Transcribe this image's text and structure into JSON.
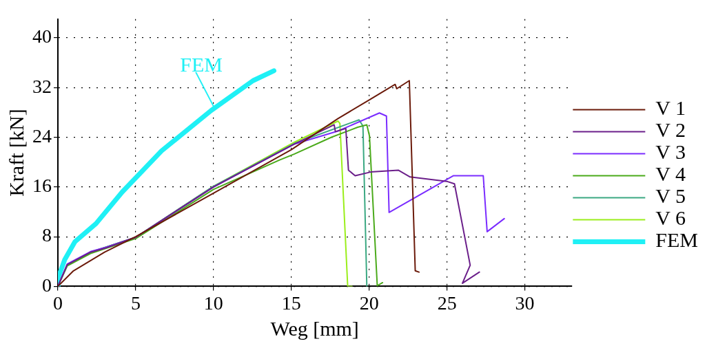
{
  "chart_data": {
    "type": "line",
    "xlabel": "Weg [mm]",
    "ylabel": "Kraft [kN]",
    "xlim": [
      0,
      33
    ],
    "ylim": [
      0,
      43
    ],
    "xticks": [
      0,
      5,
      10,
      15,
      20,
      25,
      30
    ],
    "yticks": [
      0,
      8,
      16,
      24,
      32,
      40
    ],
    "grid": true,
    "legend": "right",
    "marker": "none",
    "line_style": "solid",
    "annotations": [
      {
        "text": "FEM",
        "x": 10.1,
        "y": 28.5
      }
    ],
    "series": [
      {
        "name": "V 1",
        "color": "#6b1a0a",
        "x": [
          0,
          1,
          3,
          5,
          10,
          15,
          18,
          20,
          21.67,
          21.77,
          22.58,
          22.96,
          23.2
        ],
        "values": [
          0,
          2.5,
          5.5,
          8,
          15,
          22,
          27,
          30,
          32.5,
          31.8,
          33.1,
          2.5,
          2.3
        ]
      },
      {
        "name": "V 2",
        "color": "#6b1f8a",
        "x": [
          0,
          0.6,
          2.1,
          3.1,
          5,
          10,
          15.2,
          17.75,
          17.83,
          18.5,
          18.67,
          19.1,
          20.1,
          21.87,
          22.63,
          24.98,
          25.48,
          26.49,
          25.99,
          27.08
        ],
        "values": [
          0,
          3.5,
          5.5,
          6.2,
          7.9,
          16,
          22.9,
          26,
          24.9,
          25.4,
          18.7,
          17.8,
          18.4,
          18.7,
          17.6,
          16.9,
          16.5,
          3.4,
          0.5,
          2.3
        ]
      },
      {
        "name": "V 3",
        "color": "#7a2cff",
        "x": [
          0,
          0.6,
          2.1,
          3.1,
          5,
          10,
          15.2,
          18,
          20.66,
          21.11,
          21.28,
          25.4,
          27.33,
          27.58,
          28.68
        ],
        "values": [
          0,
          3.6,
          5.6,
          6.3,
          7.9,
          16,
          22.9,
          25,
          27.9,
          27.4,
          11.9,
          17.8,
          17.8,
          8.8,
          10.9
        ]
      },
      {
        "name": "V 4",
        "color": "#4aaa1a",
        "x": [
          0,
          0.6,
          2.1,
          5,
          10,
          14.22,
          15.2,
          17.58,
          19.26,
          19.85,
          20.02,
          20.52,
          20.86
        ],
        "values": [
          0,
          3.3,
          5.3,
          7.7,
          15.6,
          20.3,
          21.3,
          24,
          25.6,
          26,
          24.2,
          0.1,
          0.6
        ]
      },
      {
        "name": "V 5",
        "color": "#3aa882",
        "x": [
          0,
          0.6,
          2.1,
          5,
          10,
          15.2,
          19.35,
          19.6,
          19.85
        ],
        "values": [
          0,
          3.4,
          5.5,
          7.9,
          16.1,
          23,
          26.8,
          25.8,
          0
        ]
      },
      {
        "name": "V 6",
        "color": "#9aee1a",
        "x": [
          0,
          0.6,
          2.1,
          5,
          10,
          15.2,
          18,
          18.12,
          18.62,
          18.9
        ],
        "values": [
          0,
          3.4,
          5.5,
          7.9,
          16.1,
          23.2,
          26.6,
          26.2,
          0,
          0
        ]
      },
      {
        "name": "FEM",
        "color": "#1ff0f5",
        "x": [
          0,
          0.02,
          0.44,
          1.1,
          2.45,
          4.14,
          6.66,
          9.85,
          12.54,
          13.88
        ],
        "values": [
          0,
          1.4,
          4.3,
          7.2,
          10.1,
          15.2,
          21.8,
          28.3,
          33.1,
          34.7
        ]
      }
    ]
  }
}
